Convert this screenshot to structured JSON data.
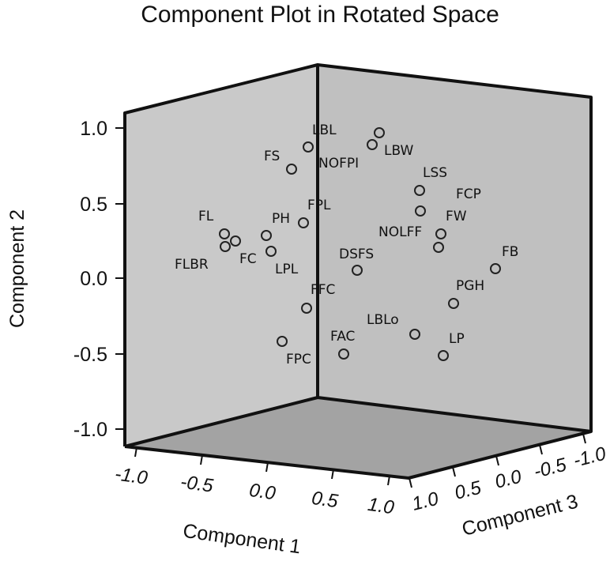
{
  "chart_data": {
    "type": "scatter",
    "title": "Component Plot in Rotated Space",
    "axes": {
      "x": {
        "label": "Component 1",
        "ticks": [
          "-1.0",
          "-0.5",
          "0.0",
          "0.5",
          "1.0"
        ]
      },
      "y": {
        "label": "Component 2",
        "ticks": [
          "1.0",
          "0.5",
          "0.0",
          "-0.5",
          "-1.0"
        ]
      },
      "z": {
        "label": "Component 3",
        "ticks": [
          "1.0",
          "0.5",
          "0.0",
          "-0.5",
          "-1.0"
        ]
      }
    },
    "points": [
      {
        "label": "LBL",
        "component2": 0.87
      },
      {
        "label": "LBW",
        "component2": 0.98
      },
      {
        "label": "FS",
        "component2": 0.72
      },
      {
        "label": "NOFPI",
        "component2": 0.89
      },
      {
        "label": "LSS",
        "component2": 0.59
      },
      {
        "label": "FCP",
        "component2": 0.45
      },
      {
        "label": "FPL",
        "component2": 0.37
      },
      {
        "label": "PH",
        "component2": 0.29
      },
      {
        "label": "FL",
        "component2": 0.3
      },
      {
        "label": "FW",
        "component2": 0.29
      },
      {
        "label": "NOLFF",
        "component2": 0.2
      },
      {
        "label": "FC",
        "component2": 0.25
      },
      {
        "label": "FLBR",
        "component2": 0.21
      },
      {
        "label": "LPL",
        "component2": 0.18
      },
      {
        "label": "DSFS",
        "component2": 0.05
      },
      {
        "label": "FB",
        "component2": 0.07
      },
      {
        "label": "PGH",
        "component2": -0.17
      },
      {
        "label": "FFC",
        "component2": -0.2
      },
      {
        "label": "LBLo",
        "component2": -0.38
      },
      {
        "label": "FAC",
        "component2": -0.51
      },
      {
        "label": "LP",
        "component2": -0.52
      },
      {
        "label": "FPC",
        "component2": -0.42
      }
    ]
  }
}
